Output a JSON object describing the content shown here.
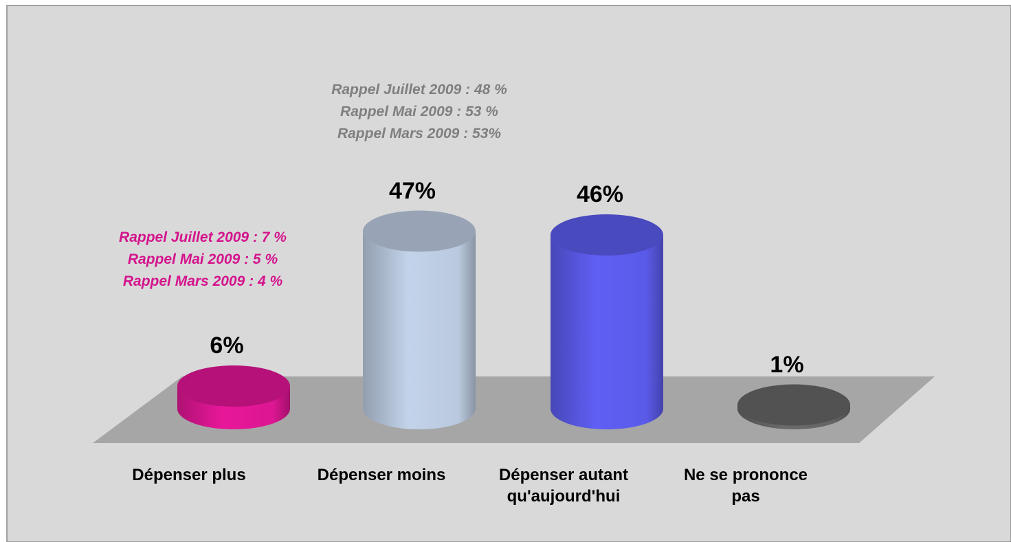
{
  "chart_data": {
    "type": "cylinder",
    "categories": [
      "Dépenser plus",
      "Dépenser moins",
      "Dépenser autant\nqu'aujourd'hui",
      "Ne se prononce\npas"
    ],
    "values": [
      6,
      47,
      46,
      1
    ],
    "value_labels": [
      "6%",
      "47%",
      "46%",
      "1%"
    ],
    "colors": [
      "#e8179a",
      "#c3d3ea",
      "#5f5ff5",
      "#6a6a6a"
    ],
    "annotations": [
      {
        "color": "#d4148c",
        "lines": [
          "Rappel Juillet 2009 : 7 %",
          "Rappel Mai 2009 : 5 %",
          "Rappel Mars 2009 : 4 %"
        ]
      },
      {
        "color": "#7f7f7f",
        "lines": [
          "Rappel Juillet 2009 : 48 %",
          "Rappel Mai 2009 : 53 %",
          "Rappel Mars 2009 : 53%"
        ]
      }
    ]
  }
}
